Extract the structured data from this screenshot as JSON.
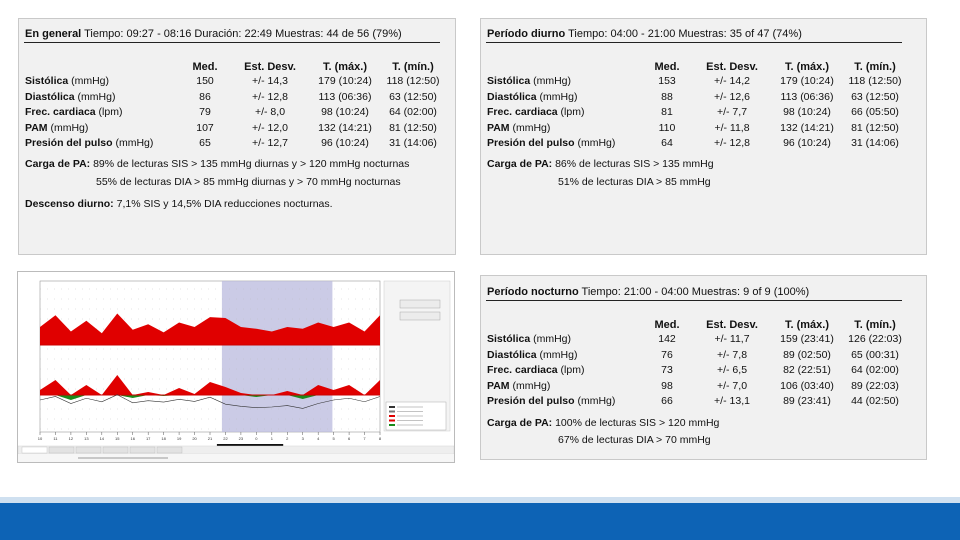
{
  "general": {
    "title": "En general",
    "info": "Tiempo: 09:27 - 08:16 Duración: 22:49 Muestras: 44 de 56 (79%)",
    "headers": [
      "Med.",
      "Est. Desv.",
      "T. (máx.)",
      "T. (mín.)"
    ],
    "rows": [
      {
        "b": "Sistólica",
        "u": " (mmHg)",
        "med": "150",
        "sd": "+/- 14,3",
        "max": "179 (10:24)",
        "min": "118 (12:50)"
      },
      {
        "b": "Diastólica",
        "u": " (mmHg)",
        "med": "86",
        "sd": "+/- 12,8",
        "max": "113 (06:36)",
        "min": "63 (12:50)"
      },
      {
        "b": "Frec. cardiaca",
        "u": " (lpm)",
        "med": "79",
        "sd": "+/- 8,0",
        "max": "98 (10:24)",
        "min": "64 (02:00)"
      },
      {
        "b": "PAM",
        "u": " (mmHg)",
        "med": "107",
        "sd": "+/- 12,0",
        "max": "132 (14:21)",
        "min": "81 (12:50)"
      },
      {
        "b": "Presión del pulso",
        "u": " (mmHg)",
        "med": "65",
        "sd": "+/- 12,7",
        "max": "96 (10:24)",
        "min": "31 (14:06)"
      }
    ],
    "carga_label": "Carga de PA:",
    "carga_1": "89% de lecturas SIS > 135 mmHg diurnas y > 120 mmHg nocturnas",
    "carga_2": "55% de lecturas DIA > 85 mmHg diurnas y > 70 mmHg nocturnas",
    "descenso_label": "Descenso diurno:",
    "descenso": "7,1% SIS y 14,5% DIA reducciones nocturnas."
  },
  "diurno": {
    "title": "Período diurno",
    "info": "Tiempo: 04:00 - 21:00 Muestras: 35 of 47 (74%)",
    "headers": [
      "Med.",
      "Est. Desv.",
      "T. (máx.)",
      "T. (mín.)"
    ],
    "rows": [
      {
        "b": "Sistólica",
        "u": " (mmHg)",
        "med": "153",
        "sd": "+/- 14,2",
        "max": "179 (10:24)",
        "min": "118 (12:50)"
      },
      {
        "b": "Diastólica",
        "u": " (mmHg)",
        "med": "88",
        "sd": "+/- 12,6",
        "max": "113 (06:36)",
        "min": "63 (12:50)"
      },
      {
        "b": "Frec. cardiaca",
        "u": " (lpm)",
        "med": "81",
        "sd": "+/- 7,7",
        "max": "98 (10:24)",
        "min": "66 (05:50)"
      },
      {
        "b": "PAM",
        "u": " (mmHg)",
        "med": "110",
        "sd": "+/- 11,8",
        "max": "132 (14:21)",
        "min": "81 (12:50)"
      },
      {
        "b": "Presión del pulso",
        "u": " (mmHg)",
        "med": "64",
        "sd": "+/- 12,8",
        "max": "96 (10:24)",
        "min": "31 (14:06)"
      }
    ],
    "carga_label": "Carga de PA:",
    "carga_1": "86% de lecturas SIS > 135 mmHg",
    "carga_2": "51% de lecturas DIA > 85 mmHg"
  },
  "nocturno": {
    "title": "Período nocturno",
    "info": "Tiempo: 21:00 - 04:00 Muestras: 9 of 9 (100%)",
    "headers": [
      "Med.",
      "Est. Desv.",
      "T. (máx.)",
      "T. (mín.)"
    ],
    "rows": [
      {
        "b": "Sistólica",
        "u": " (mmHg)",
        "med": "142",
        "sd": "+/- 11,7",
        "max": "159 (23:41)",
        "min": "126 (22:03)"
      },
      {
        "b": "Diastólica",
        "u": " (mmHg)",
        "med": "76",
        "sd": "+/- 7,8",
        "max": "89 (02:50)",
        "min": "65 (00:31)"
      },
      {
        "b": "Frec. cardiaca",
        "u": " (lpm)",
        "med": "73",
        "sd": "+/- 6,5",
        "max": "82 (22:51)",
        "min": "64 (02:00)"
      },
      {
        "b": "PAM",
        "u": " (mmHg)",
        "med": "98",
        "sd": "+/- 7,0",
        "max": "106 (03:40)",
        "min": "89 (22:03)"
      },
      {
        "b": "Presión del pulso",
        "u": " (mmHg)",
        "med": "66",
        "sd": "+/- 13,1",
        "max": "89 (23:41)",
        "min": "44 (02:50)"
      }
    ],
    "carga_label": "Carga de PA:",
    "carga_1": "100% de lecturas SIS > 120 mmHg",
    "carga_2": "67% de lecturas DIA > 70 mmHg"
  },
  "chart_thumbnail": {
    "x_ticks": [
      "10",
      "11",
      "12",
      "13",
      "14",
      "15",
      "16",
      "17",
      "18",
      "19",
      "20",
      "21",
      "22",
      "23",
      "0",
      "1",
      "2",
      "3",
      "4",
      "5",
      "6",
      "7",
      "8"
    ],
    "sys_profile": [
      155,
      168,
      150,
      162,
      148,
      170,
      152,
      158,
      149,
      160,
      155,
      166,
      150,
      140,
      138,
      135,
      140,
      138,
      145,
      155,
      160,
      150,
      168
    ],
    "dia_profile": [
      90,
      100,
      80,
      95,
      85,
      105,
      82,
      88,
      84,
      92,
      86,
      98,
      78,
      72,
      68,
      70,
      74,
      66,
      80,
      90,
      95,
      85,
      100
    ],
    "colors": {
      "above": "#e00000",
      "below": "#1a8a1a",
      "night": "#b9b9de"
    }
  }
}
